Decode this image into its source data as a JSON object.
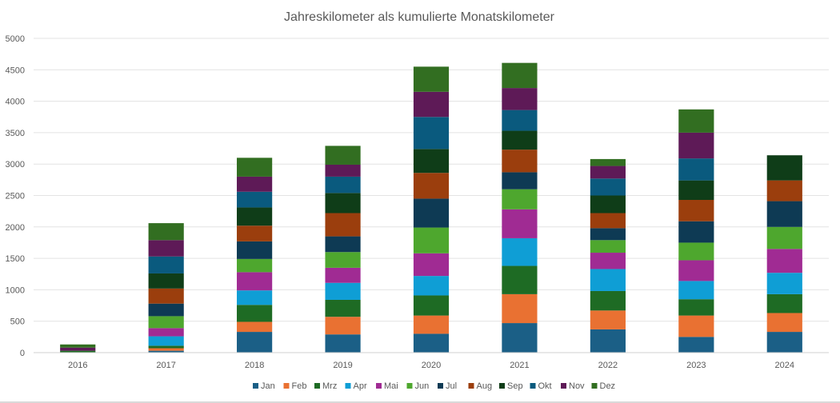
{
  "chart_data": {
    "type": "bar",
    "stacked": true,
    "title": "Jahreskilometer als kumulierte Monatskilometer",
    "xlabel": "",
    "ylabel": "",
    "ylim": [
      0,
      5000
    ],
    "yticks": [
      0,
      500,
      1000,
      1500,
      2000,
      2500,
      3000,
      3500,
      4000,
      4500,
      5000
    ],
    "grid": true,
    "legend_position": "bottom",
    "categories": [
      "2016",
      "2017",
      "2018",
      "2019",
      "2020",
      "2021",
      "2022",
      "2023",
      "2024"
    ],
    "series": [
      {
        "name": "Jan",
        "color": "#1b5f86",
        "values": [
          0,
          30,
          330,
          290,
          300,
          470,
          370,
          250,
          330
        ]
      },
      {
        "name": "Feb",
        "color": "#e97132",
        "values": [
          0,
          40,
          160,
          280,
          290,
          460,
          300,
          340,
          300
        ]
      },
      {
        "name": "Mrz",
        "color": "#1e6b24",
        "values": [
          30,
          40,
          270,
          270,
          320,
          450,
          310,
          260,
          300
        ]
      },
      {
        "name": "Apr",
        "color": "#0f9ed5",
        "values": [
          0,
          150,
          230,
          270,
          310,
          440,
          350,
          290,
          340
        ]
      },
      {
        "name": "Mai",
        "color": "#a02b93",
        "values": [
          0,
          130,
          290,
          240,
          360,
          460,
          260,
          330,
          380
        ]
      },
      {
        "name": "Jun",
        "color": "#4ea72e",
        "values": [
          0,
          190,
          210,
          250,
          410,
          320,
          200,
          280,
          350
        ]
      },
      {
        "name": "Jul",
        "color": "#0e3a54",
        "values": [
          0,
          200,
          280,
          250,
          460,
          270,
          190,
          340,
          410
        ]
      },
      {
        "name": "Aug",
        "color": "#9b3e0d",
        "values": [
          0,
          240,
          250,
          370,
          410,
          360,
          240,
          340,
          330
        ]
      },
      {
        "name": "Sep",
        "color": "#0f3d18",
        "values": [
          0,
          240,
          290,
          320,
          380,
          300,
          280,
          310,
          400
        ]
      },
      {
        "name": "Okt",
        "color": "#0a5a7e",
        "values": [
          0,
          270,
          250,
          260,
          510,
          330,
          270,
          350,
          0
        ]
      },
      {
        "name": "Nov",
        "color": "#5e1a57",
        "values": [
          50,
          260,
          240,
          190,
          400,
          350,
          200,
          410,
          0
        ]
      },
      {
        "name": "Dez",
        "color": "#326e21",
        "values": [
          50,
          270,
          300,
          300,
          400,
          400,
          110,
          370,
          0
        ]
      }
    ]
  }
}
